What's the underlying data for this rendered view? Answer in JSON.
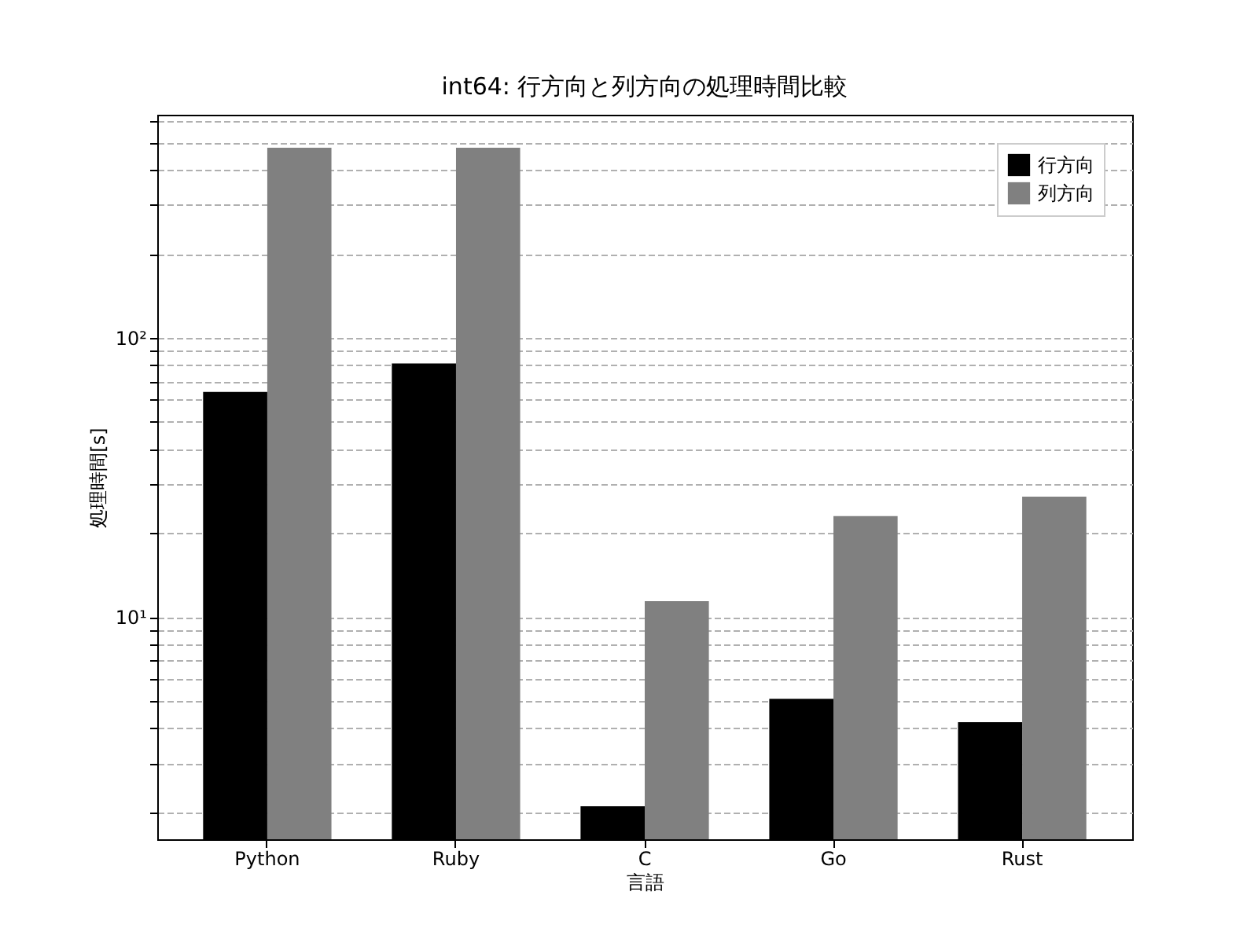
{
  "chart_data": {
    "type": "bar",
    "title": "int64: 行方向と列方向の処理時間比較",
    "xlabel": "言語",
    "ylabel": "処理時間[s]",
    "categories": [
      "Python",
      "Ruby",
      "C",
      "Go",
      "Rust"
    ],
    "series": [
      {
        "name": "行方向",
        "color": "#000000",
        "values": [
          64,
          81,
          2.1,
          5.1,
          4.2
        ]
      },
      {
        "name": "列方向",
        "color": "#808080",
        "values": [
          480,
          480,
          11.4,
          23,
          27
        ]
      }
    ],
    "log": "y",
    "ylim": [
      1.6,
      630
    ],
    "yticks": [
      {
        "value": 2,
        "label": null
      },
      {
        "value": 3,
        "label": null
      },
      {
        "value": 4,
        "label": null
      },
      {
        "value": 5,
        "label": null
      },
      {
        "value": 6,
        "label": null
      },
      {
        "value": 7,
        "label": null
      },
      {
        "value": 8,
        "label": null
      },
      {
        "value": 9,
        "label": null
      },
      {
        "value": 10,
        "label": "10¹"
      },
      {
        "value": 20,
        "label": null
      },
      {
        "value": 30,
        "label": null
      },
      {
        "value": 40,
        "label": null
      },
      {
        "value": 50,
        "label": null
      },
      {
        "value": 60,
        "label": null
      },
      {
        "value": 70,
        "label": null
      },
      {
        "value": 80,
        "label": null
      },
      {
        "value": 90,
        "label": null
      },
      {
        "value": 100,
        "label": "10²"
      },
      {
        "value": 200,
        "label": null
      },
      {
        "value": 300,
        "label": null
      },
      {
        "value": 400,
        "label": null
      },
      {
        "value": 500,
        "label": null
      },
      {
        "value": 600,
        "label": null
      }
    ],
    "grid": "y",
    "legend": "top right"
  }
}
